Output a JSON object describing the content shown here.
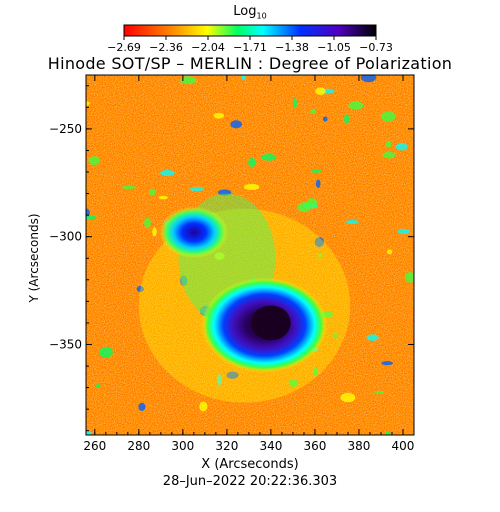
{
  "colorbar": {
    "label_main": "Log",
    "label_sub": "10",
    "ticks": [
      "−2.69",
      "−2.36",
      "−2.04",
      "−1.71",
      "−1.38",
      "−1.05",
      "−0.73"
    ]
  },
  "title": "Hinode SOT/SP – MERLIN : Degree of Polarization",
  "date": "28–Jun–2022 20:22:36.303",
  "chart_data": {
    "type": "heatmap",
    "title": "Hinode SOT/SP – MERLIN : Degree of Polarization",
    "xlabel": "X (Arcseconds)",
    "ylabel": "Y (Arcseconds)",
    "xlim": [
      256,
      405
    ],
    "ylim": [
      -392,
      -225
    ],
    "x_ticks": [
      260,
      280,
      300,
      320,
      340,
      360,
      380,
      400
    ],
    "y_ticks": [
      -250,
      -300,
      -350
    ],
    "colorbar_range": [
      -2.69,
      -0.73
    ],
    "colormap": [
      "#ff0000",
      "#ff8000",
      "#ffff00",
      "#00ff40",
      "#00ffff",
      "#0040ff",
      "#4000c0",
      "#100010"
    ],
    "background_color": "#ff3000",
    "features": [
      {
        "name": "sunspot umbra",
        "x": 340,
        "y": -340,
        "radius": 9,
        "log_value": -0.73
      },
      {
        "name": "penumbra",
        "x": 337,
        "y": -341,
        "radius": 22,
        "log_value": -1.2
      },
      {
        "name": "plage",
        "x": 305,
        "y": -298,
        "radius": 12,
        "log_value": -1.3
      }
    ]
  }
}
